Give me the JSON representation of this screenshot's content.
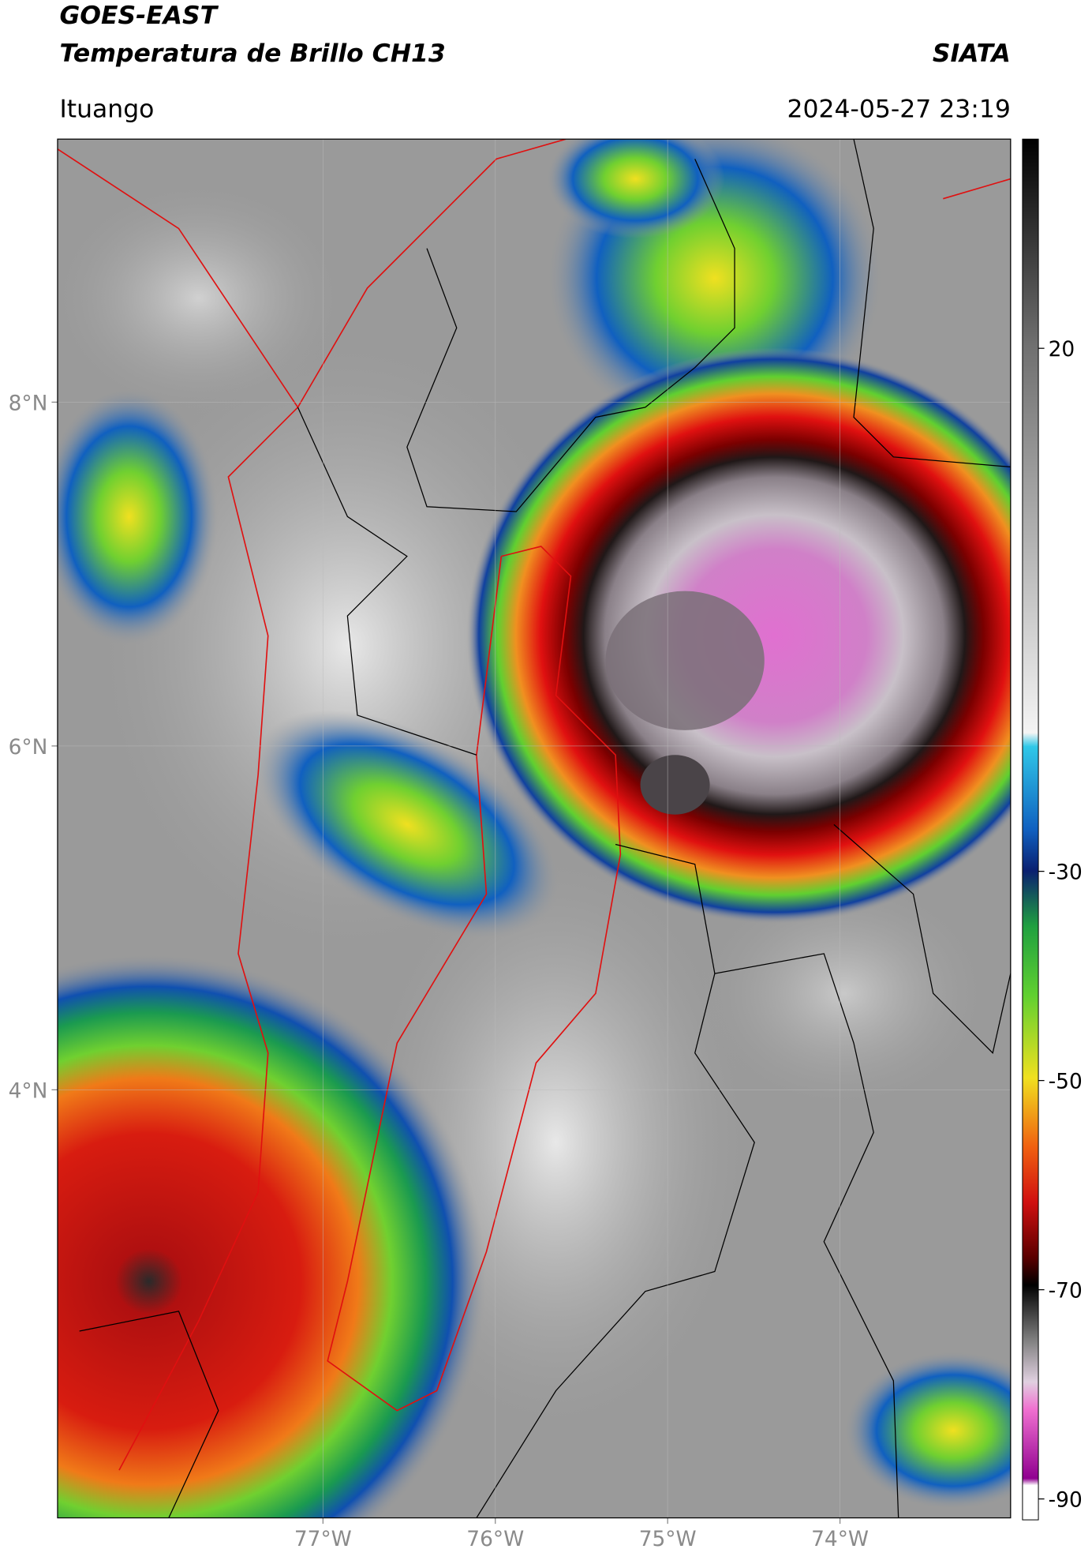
{
  "header": {
    "title_lines": [
      "GOES-EAST",
      "Temperatura de Brillo CH13"
    ],
    "source": "SIATA",
    "location": "Ituango",
    "timestamp": "2024-05-27 23:19"
  },
  "map": {
    "lon_range": [
      -78.54,
      -73.01
    ],
    "lat_range": [
      1.51,
      9.53
    ],
    "lon_ticks": [
      {
        "value": -77,
        "label": "77°W"
      },
      {
        "value": -76,
        "label": "76°W"
      },
      {
        "value": -75,
        "label": "75°W"
      },
      {
        "value": -74,
        "label": "74°W"
      }
    ],
    "lat_ticks": [
      {
        "value": 8,
        "label": "8°N"
      },
      {
        "value": 6,
        "label": "6°N"
      },
      {
        "value": 4,
        "label": "4°N"
      }
    ]
  },
  "colorbar": {
    "range": [
      -92,
      40
    ],
    "ticks": [
      20,
      -30,
      -50,
      -70,
      -90
    ]
  }
}
